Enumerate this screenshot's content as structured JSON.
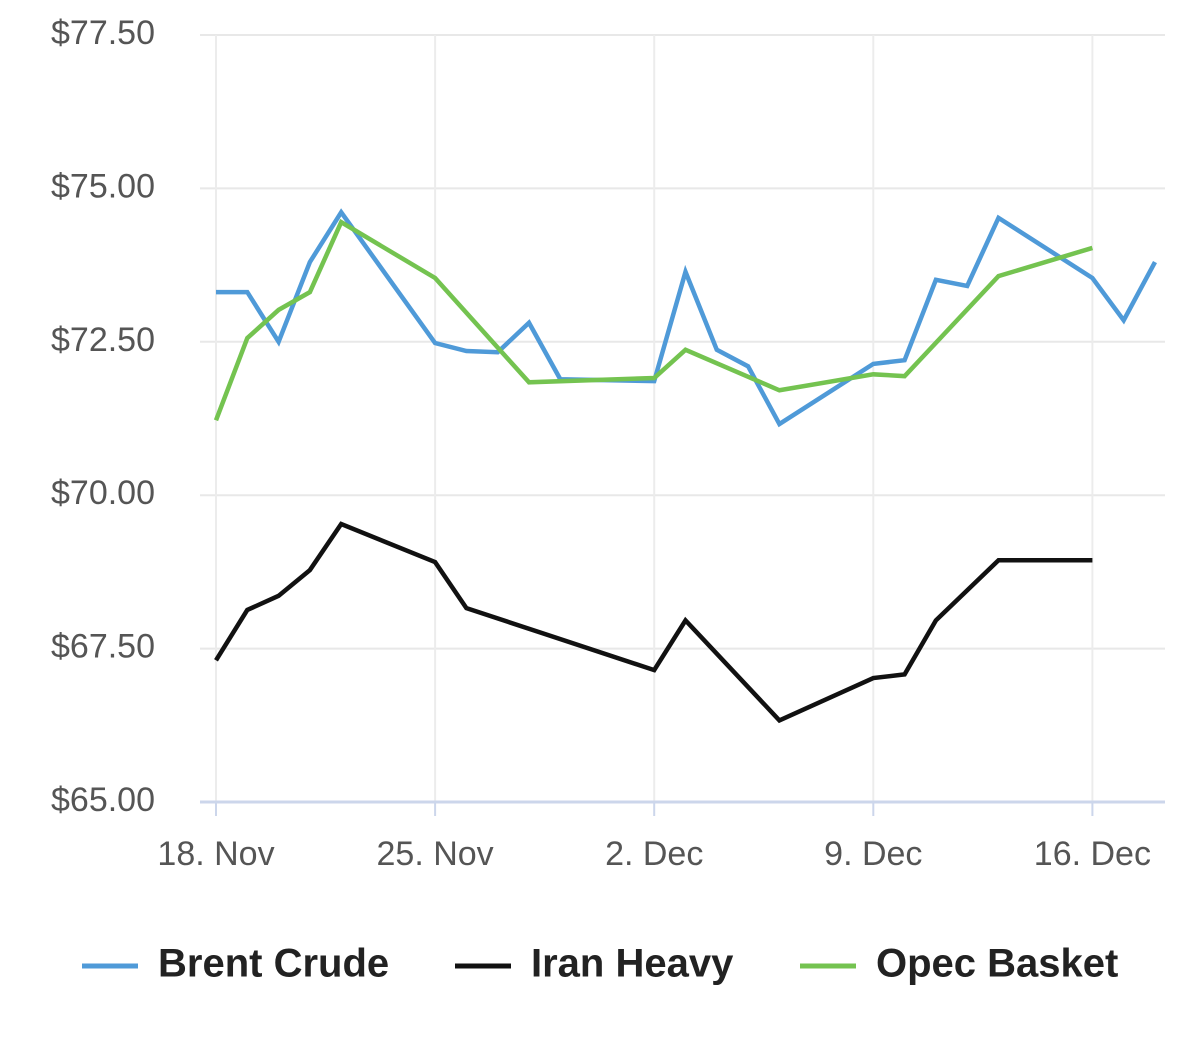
{
  "chart_data": {
    "type": "line",
    "xlim": [
      0,
      30
    ],
    "ylim": [
      65,
      77.5
    ],
    "xticks": [
      {
        "value": 0,
        "label": "18. Nov"
      },
      {
        "value": 7,
        "label": "25. Nov"
      },
      {
        "value": 14,
        "label": "2. Dec"
      },
      {
        "value": 21,
        "label": "9. Dec"
      },
      {
        "value": 28,
        "label": "16. Dec"
      }
    ],
    "yticks": [
      {
        "value": 65,
        "label": "$65.00"
      },
      {
        "value": 67.5,
        "label": "$67.50"
      },
      {
        "value": 70,
        "label": "$70.00"
      },
      {
        "value": 72.5,
        "label": "$72.50"
      },
      {
        "value": 75,
        "label": "$75.00"
      },
      {
        "value": 77.5,
        "label": "$77.50"
      }
    ],
    "grid": true,
    "legend": "bottom",
    "series": [
      {
        "name": "Brent Crude",
        "color": "#4f9ad8",
        "x": [
          0,
          1,
          2,
          3,
          4,
          7,
          8,
          9,
          10,
          11,
          14,
          15,
          16,
          17,
          18,
          21,
          22,
          23,
          24,
          25,
          28,
          29,
          30
        ],
        "values": [
          73.31,
          73.31,
          72.5,
          73.8,
          74.61,
          72.48,
          72.35,
          72.33,
          72.81,
          71.89,
          71.86,
          73.64,
          72.37,
          72.1,
          71.16,
          72.14,
          72.2,
          73.51,
          73.41,
          74.52,
          73.54,
          72.85,
          73.8
        ]
      },
      {
        "name": "Iran Heavy",
        "color": "#111111",
        "x": [
          0,
          1,
          2,
          3,
          4,
          7,
          8,
          14,
          15,
          18,
          21,
          22,
          23,
          25,
          28
        ],
        "values": [
          67.31,
          68.13,
          68.36,
          68.78,
          69.53,
          68.91,
          68.16,
          67.15,
          67.96,
          66.33,
          67.02,
          67.08,
          67.96,
          68.94,
          68.94
        ]
      },
      {
        "name": "Opec Basket",
        "color": "#74c350",
        "x": [
          0,
          1,
          2,
          3,
          4,
          7,
          10,
          14,
          15,
          18,
          21,
          22,
          25,
          28
        ],
        "values": [
          71.22,
          72.56,
          73.02,
          73.31,
          74.45,
          73.54,
          71.84,
          71.91,
          72.37,
          71.71,
          71.97,
          71.94,
          73.57,
          74.03
        ]
      }
    ]
  }
}
